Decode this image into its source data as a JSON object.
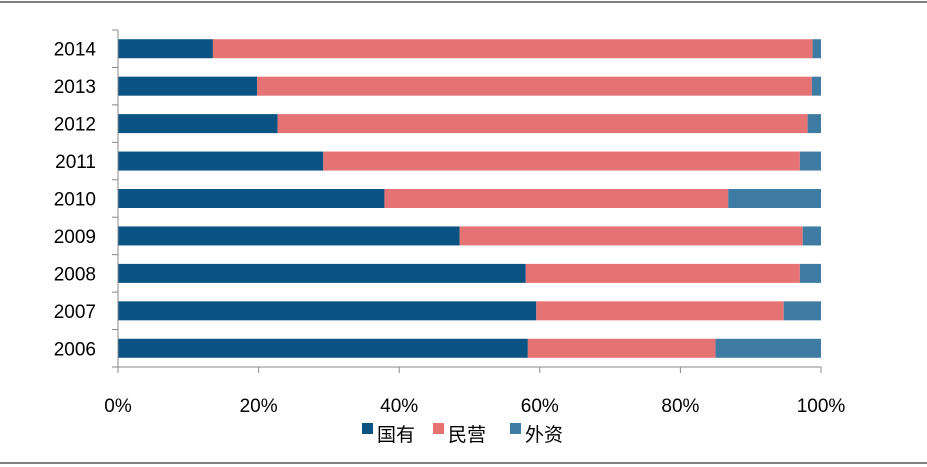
{
  "chart_data": {
    "type": "bar",
    "orientation": "horizontal",
    "stacked": "percent",
    "categories": [
      "2014",
      "2013",
      "2012",
      "2011",
      "2010",
      "2009",
      "2008",
      "2007",
      "2006"
    ],
    "series": [
      {
        "name": "国有",
        "color": "#0B5383",
        "values": [
          13.5,
          19.8,
          22.7,
          29.2,
          37.9,
          48.6,
          58.0,
          59.5,
          58.3
        ]
      },
      {
        "name": "民营",
        "color": "#E57373",
        "values": [
          85.3,
          78.9,
          75.4,
          67.8,
          48.9,
          48.8,
          39.0,
          35.2,
          26.7
        ]
      },
      {
        "name": "外资",
        "color": "#3E7CA4",
        "values": [
          1.2,
          1.3,
          1.9,
          3.0,
          13.2,
          2.6,
          3.0,
          5.3,
          15.0
        ]
      }
    ],
    "xlim": [
      0,
      100
    ],
    "x_ticks": [
      "0%",
      "20%",
      "40%",
      "60%",
      "80%",
      "100%"
    ],
    "grid": false,
    "legend_position": "bottom",
    "title": "",
    "xlabel": "",
    "ylabel": ""
  }
}
